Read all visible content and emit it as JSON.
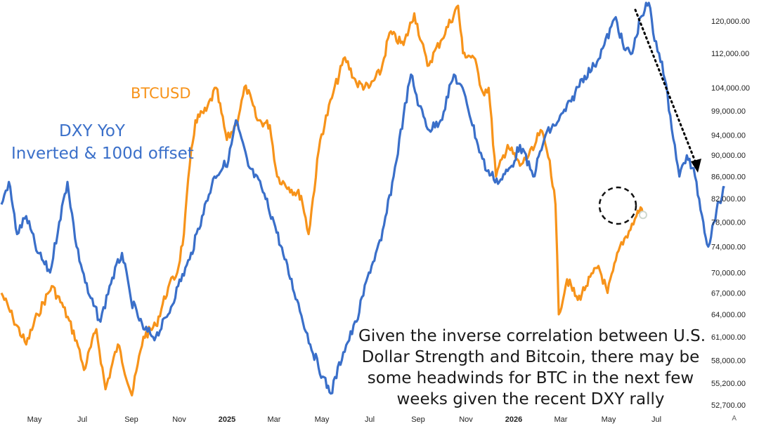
{
  "labels": {
    "btc": "BTCUSD",
    "dxy_line1": "DXY YoY",
    "dxy_line2": "Inverted & 100d offset"
  },
  "annotation": {
    "lines": [
      "Given the inverse correlation between U.S.",
      "Dollar Strength and Bitcoin, there may be",
      "some headwinds for BTC in the next few",
      "weeks given the recent DXY rally"
    ]
  },
  "corner_button": "A",
  "colors": {
    "btc": "#f7931a",
    "dxy": "#3a6fc9",
    "arrow": "#000000"
  },
  "chart_data": {
    "type": "line",
    "y_scale": "log",
    "y_ticks": [
      {
        "value": 120000,
        "label": "120,000.00"
      },
      {
        "value": 112000,
        "label": "112,000.00"
      },
      {
        "value": 104000,
        "label": "104,000.00"
      },
      {
        "value": 99000,
        "label": "99,000.00"
      },
      {
        "value": 94000,
        "label": "94,000.00"
      },
      {
        "value": 90000,
        "label": "90,000.00"
      },
      {
        "value": 86000,
        "label": "86,000.00"
      },
      {
        "value": 82000,
        "label": "82,000.00"
      },
      {
        "value": 78000,
        "label": "78,000.00"
      },
      {
        "value": 74000,
        "label": "74,000.00"
      },
      {
        "value": 70000,
        "label": "70,000.00"
      },
      {
        "value": 67000,
        "label": "67,000.00"
      },
      {
        "value": 64000,
        "label": "64,000.00"
      },
      {
        "value": 61000,
        "label": "61,000.00"
      },
      {
        "value": 58000,
        "label": "58,000.00"
      },
      {
        "value": 55200,
        "label": "55,200.00"
      },
      {
        "value": 52700,
        "label": "52,700.00"
      }
    ],
    "x_ticks": [
      {
        "label": "May",
        "bold": false
      },
      {
        "label": "Jul",
        "bold": false
      },
      {
        "label": "Sep",
        "bold": false
      },
      {
        "label": "Nov",
        "bold": false
      },
      {
        "label": "2025",
        "bold": true
      },
      {
        "label": "Mar",
        "bold": false
      },
      {
        "label": "May",
        "bold": false
      },
      {
        "label": "Jul",
        "bold": false
      },
      {
        "label": "Sep",
        "bold": false
      },
      {
        "label": "Nov",
        "bold": false
      },
      {
        "label": "2026",
        "bold": true
      },
      {
        "label": "Mar",
        "bold": false
      },
      {
        "label": "May",
        "bold": false
      },
      {
        "label": "Jul",
        "bold": false
      }
    ],
    "series": [
      {
        "name": "BTCUSD",
        "color": "#f7931a",
        "points": [
          [
            "2024-04-01",
            67000
          ],
          [
            "2024-04-15",
            63500
          ],
          [
            "2024-05-01",
            60000
          ],
          [
            "2024-05-15",
            64000
          ],
          [
            "2024-06-01",
            68000
          ],
          [
            "2024-06-15",
            65000
          ],
          [
            "2024-07-01",
            60500
          ],
          [
            "2024-07-10",
            56800
          ],
          [
            "2024-07-25",
            62000
          ],
          [
            "2024-08-05",
            54500
          ],
          [
            "2024-08-20",
            60000
          ],
          [
            "2024-09-06",
            53800
          ],
          [
            "2024-09-20",
            61000
          ],
          [
            "2024-10-05",
            62500
          ],
          [
            "2024-10-20",
            67800
          ],
          [
            "2024-10-31",
            70000
          ],
          [
            "2024-11-08",
            76000
          ],
          [
            "2024-11-15",
            88000
          ],
          [
            "2024-11-22",
            97000
          ],
          [
            "2024-12-05",
            99000
          ],
          [
            "2024-12-17",
            104000
          ],
          [
            "2024-12-30",
            93000
          ],
          [
            "2025-01-10",
            96000
          ],
          [
            "2025-01-22",
            104500
          ],
          [
            "2025-02-05",
            97000
          ],
          [
            "2025-02-20",
            96000
          ],
          [
            "2025-03-01",
            86000
          ],
          [
            "2025-03-15",
            84000
          ],
          [
            "2025-03-30",
            82500
          ],
          [
            "2025-04-08",
            76000
          ],
          [
            "2025-04-22",
            93000
          ],
          [
            "2025-05-08",
            103000
          ],
          [
            "2025-05-22",
            111000
          ],
          [
            "2025-06-05",
            105000
          ],
          [
            "2025-06-20",
            104000
          ],
          [
            "2025-07-05",
            108000
          ],
          [
            "2025-07-15",
            117000
          ],
          [
            "2025-08-01",
            114000
          ],
          [
            "2025-08-14",
            122000
          ],
          [
            "2025-08-30",
            109000
          ],
          [
            "2025-09-15",
            115000
          ],
          [
            "2025-10-06",
            124000
          ],
          [
            "2025-10-12",
            112000
          ],
          [
            "2025-10-25",
            111000
          ],
          [
            "2025-11-05",
            103000
          ],
          [
            "2025-11-12",
            104000
          ],
          [
            "2025-11-21",
            86000
          ],
          [
            "2025-12-05",
            92000
          ],
          [
            "2025-12-20",
            88000
          ],
          [
            "2026-01-05",
            91000
          ],
          [
            "2026-01-14",
            95000
          ],
          [
            "2026-01-25",
            89000
          ],
          [
            "2026-02-01",
            81000
          ],
          [
            "2026-02-05",
            64000
          ],
          [
            "2026-02-15",
            69000
          ],
          [
            "2026-02-28",
            66000
          ],
          [
            "2026-03-10",
            68000
          ],
          [
            "2026-03-25",
            71000
          ],
          [
            "2026-04-05",
            67000
          ],
          [
            "2026-04-20",
            74000
          ],
          [
            "2026-05-01",
            76500
          ],
          [
            "2026-05-10",
            79000
          ],
          [
            "2026-05-15",
            80500
          ],
          [
            "2026-05-18",
            79200
          ]
        ]
      },
      {
        "name": "DXY YoY Inverted & 100d offset",
        "color": "#3a6fc9",
        "points": [
          [
            "2024-04-01",
            81000
          ],
          [
            "2024-04-10",
            85000
          ],
          [
            "2024-04-20",
            76000
          ],
          [
            "2024-05-01",
            79000
          ],
          [
            "2024-05-15",
            73000
          ],
          [
            "2024-05-30",
            70000
          ],
          [
            "2024-06-10",
            78000
          ],
          [
            "2024-06-20",
            85000
          ],
          [
            "2024-07-01",
            74000
          ],
          [
            "2024-07-15",
            67000
          ],
          [
            "2024-07-30",
            63000
          ],
          [
            "2024-08-10",
            68000
          ],
          [
            "2024-08-25",
            73000
          ],
          [
            "2024-09-05",
            66000
          ],
          [
            "2024-09-20",
            62000
          ],
          [
            "2024-10-05",
            61000
          ],
          [
            "2024-10-20",
            64000
          ],
          [
            "2024-11-01",
            68000
          ],
          [
            "2024-11-15",
            72000
          ],
          [
            "2024-11-30",
            79000
          ],
          [
            "2024-12-15",
            86000
          ],
          [
            "2025-01-01",
            89000
          ],
          [
            "2025-01-10",
            97000
          ],
          [
            "2025-01-25",
            88000
          ],
          [
            "2025-02-10",
            84000
          ],
          [
            "2025-02-25",
            78000
          ],
          [
            "2025-03-10",
            72000
          ],
          [
            "2025-03-25",
            66000
          ],
          [
            "2025-04-10",
            60000
          ],
          [
            "2025-04-25",
            56000
          ],
          [
            "2025-05-05",
            54000
          ],
          [
            "2025-05-20",
            59000
          ],
          [
            "2025-06-05",
            63000
          ],
          [
            "2025-06-20",
            70000
          ],
          [
            "2025-07-05",
            75000
          ],
          [
            "2025-07-20",
            86000
          ],
          [
            "2025-08-01",
            98000
          ],
          [
            "2025-08-10",
            107000
          ],
          [
            "2025-08-20",
            100000
          ],
          [
            "2025-09-01",
            95000
          ],
          [
            "2025-09-15",
            97000
          ],
          [
            "2025-10-01",
            107000
          ],
          [
            "2025-10-15",
            102000
          ],
          [
            "2025-10-30",
            92000
          ],
          [
            "2025-11-10",
            87000
          ],
          [
            "2025-11-25",
            85000
          ],
          [
            "2025-12-10",
            88000
          ],
          [
            "2025-12-20",
            92000
          ],
          [
            "2026-01-05",
            86000
          ],
          [
            "2026-01-20",
            94000
          ],
          [
            "2026-02-05",
            97000
          ],
          [
            "2026-02-20",
            101000
          ],
          [
            "2026-03-05",
            106000
          ],
          [
            "2026-03-20",
            109000
          ],
          [
            "2026-04-01",
            114000
          ],
          [
            "2026-04-15",
            121000
          ],
          [
            "2026-04-25",
            113000
          ],
          [
            "2026-05-05",
            112000
          ],
          [
            "2026-05-15",
            121000
          ],
          [
            "2026-05-25",
            125000
          ],
          [
            "2026-06-01",
            115000
          ],
          [
            "2026-06-10",
            110000
          ],
          [
            "2026-06-20",
            98000
          ],
          [
            "2026-07-01",
            86000
          ],
          [
            "2026-07-10",
            90000
          ],
          [
            "2026-07-20",
            86000
          ],
          [
            "2026-07-30",
            78000
          ],
          [
            "2026-08-05",
            74000
          ],
          [
            "2026-08-15",
            80000
          ],
          [
            "2026-08-25",
            84000
          ]
        ]
      }
    ]
  }
}
